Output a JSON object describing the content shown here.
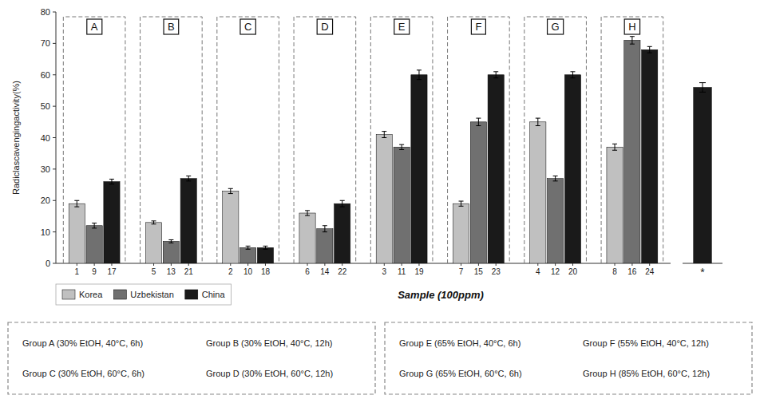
{
  "chart_data": {
    "type": "bar",
    "categories": [
      "A",
      "B",
      "C",
      "D",
      "E",
      "F",
      "G",
      "H"
    ],
    "series": [
      {
        "name": "Korea",
        "color": "#c0c0c0",
        "values": [
          19,
          13,
          23,
          16,
          41,
          19,
          45,
          37
        ],
        "errors": [
          1.0,
          0.5,
          0.8,
          0.8,
          1.0,
          0.8,
          1.2,
          1.0
        ],
        "samples": [
          1,
          5,
          2,
          6,
          3,
          7,
          4,
          8
        ]
      },
      {
        "name": "Uzbekistan",
        "color": "#707070",
        "values": [
          12,
          7,
          5,
          11,
          37,
          45,
          27,
          71
        ],
        "errors": [
          0.8,
          0.5,
          0.5,
          1.0,
          0.8,
          1.2,
          0.8,
          1.2
        ],
        "samples": [
          9,
          13,
          10,
          14,
          11,
          15,
          12,
          16
        ]
      },
      {
        "name": "China",
        "color": "#1a1a1a",
        "values": [
          26,
          27,
          5,
          19,
          60,
          60,
          60,
          68
        ],
        "errors": [
          0.8,
          0.8,
          0.5,
          1.0,
          1.5,
          1.0,
          1.0,
          1.0
        ],
        "samples": [
          17,
          21,
          18,
          22,
          19,
          23,
          20,
          24
        ]
      }
    ],
    "reference": {
      "label": "*",
      "value": 56,
      "error": 1.5,
      "color": "#1a1a1a"
    },
    "xlabel": "Sample (100ppm)",
    "ylabel": "Radiclascavengingactivity(%)",
    "ylim": [
      0,
      80
    ],
    "yticks": [
      0,
      10,
      20,
      30,
      40,
      50,
      60,
      70,
      80
    ],
    "grid": false,
    "legend": "bottom",
    "annotations": [
      "Group A (30% EtOH, 40°C, 6h)",
      "Group B (30% EtOH, 40°C, 12h)",
      "Group C (30% EtOH, 60°C, 6h)",
      "Group D (30% EtOH, 60°C, 12h)",
      "Group E (65% EtOH, 40°C, 6h)",
      "Group F (55% EtOH, 40°C, 12h)",
      "Group G (65% EtOH, 60°C, 6h)",
      "Group H (85% EtOH, 60°C, 12h)"
    ]
  }
}
